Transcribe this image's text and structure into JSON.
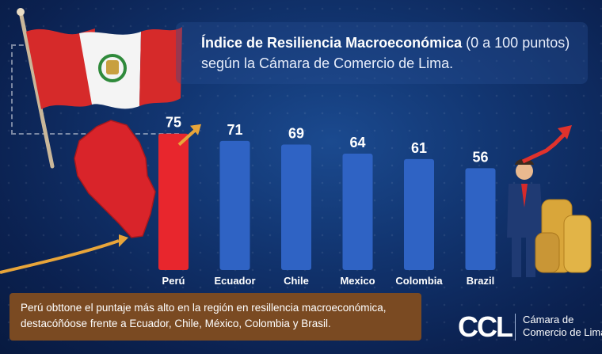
{
  "title": {
    "bold": "Índice de Resiliencia Macroeconómica",
    "light": "(0 a 100 puntos)",
    "line2": "según la Cámara de Comercio de Lima."
  },
  "caption": {
    "line1": "Perú obttone el puntaje más alto en la región en resillencia macroeconómica,",
    "line2": "destacóñóose frente a Ecuador, Chile, México, Colombia y Brasil."
  },
  "logo": {
    "mark": "CCL",
    "line1": "Cámara de",
    "line2": "Comercio de Lima"
  },
  "colors": {
    "highlight_bar": "#e8262d",
    "bar": "#2f63c4",
    "arrow": "#e8a53a",
    "trend_arrow": "#e0322c"
  },
  "chart_data": {
    "type": "bar",
    "categories": [
      "Perú",
      "Ecuador",
      "Chile",
      "Mexico",
      "Colombia",
      "Brazil"
    ],
    "values": [
      75,
      71,
      69,
      64,
      61,
      56
    ],
    "highlight": "Perú",
    "ylim": [
      0,
      100
    ],
    "grid": false,
    "title": "Índice de Resiliencia Macroeconómica (0 a 100 puntos)"
  }
}
